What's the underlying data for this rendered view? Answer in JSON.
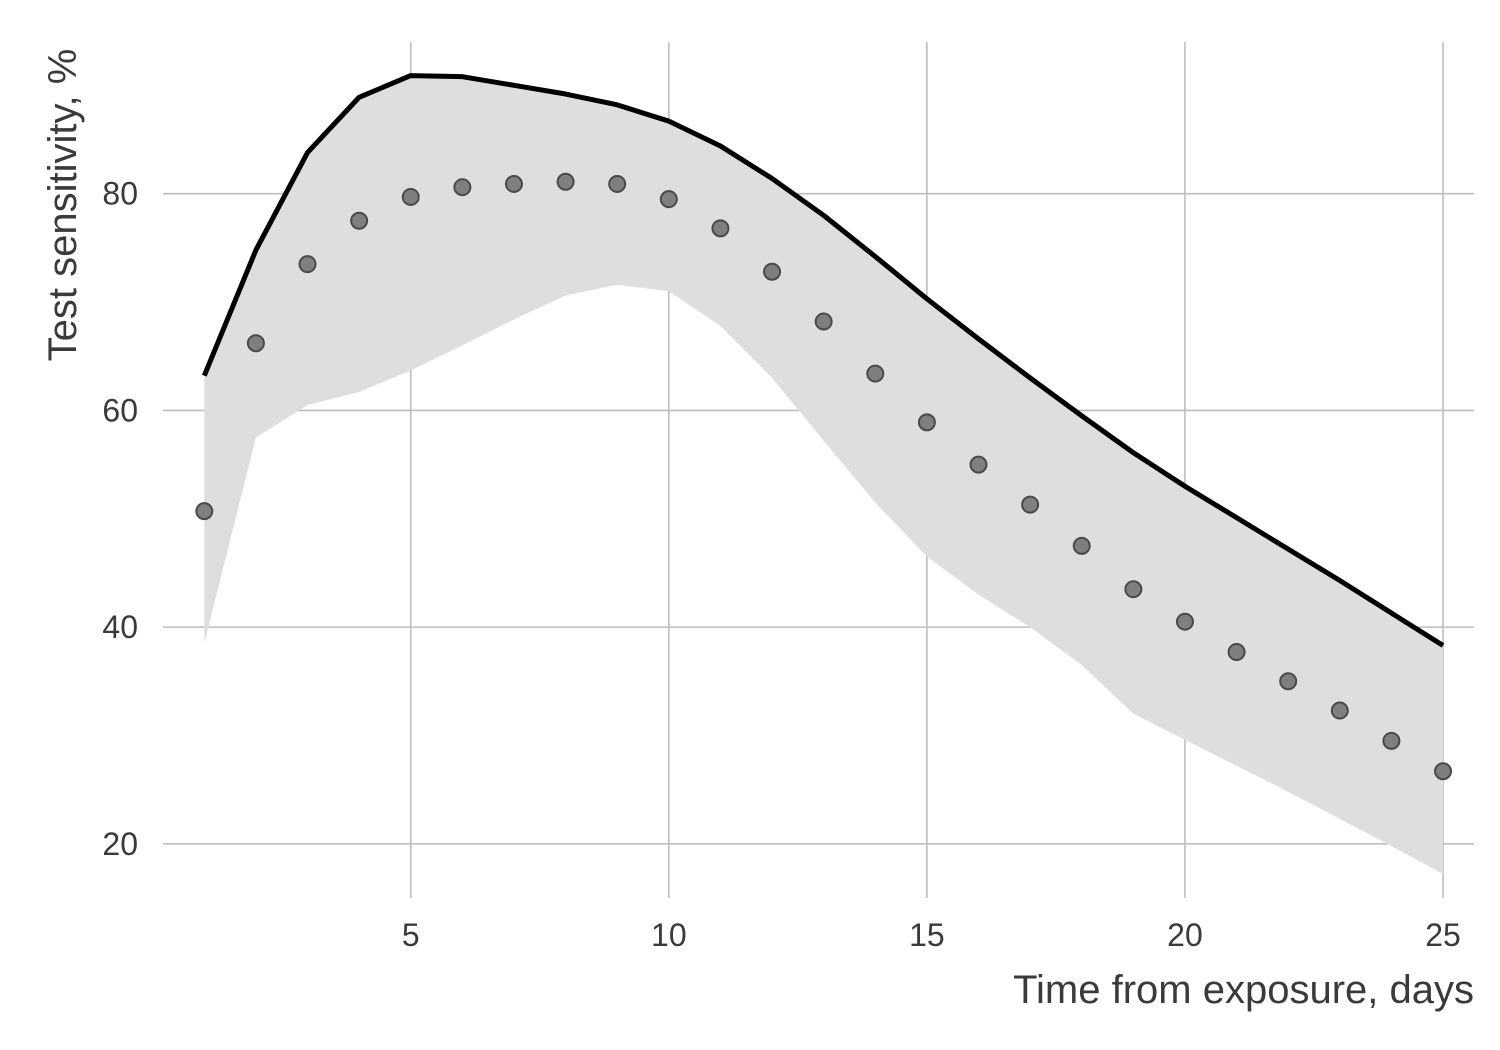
{
  "chart_data": {
    "type": "line",
    "xlabel": "Time from exposure, days",
    "ylabel": "Test sensitivity, %",
    "xlim": [
      0.2,
      25.6
    ],
    "ylim": [
      15,
      94
    ],
    "xticks": [
      5,
      10,
      15,
      20,
      25
    ],
    "yticks": [
      20,
      40,
      60,
      80
    ],
    "xtick_labels": [
      "5",
      "10",
      "15",
      "20",
      "25"
    ],
    "ytick_labels": [
      "20",
      "40",
      "60",
      "80"
    ],
    "grid": true,
    "colors": {
      "band": "#dedede",
      "upper_line": "#000000",
      "points": "#7f7f7f",
      "grid": "#bdbdbd",
      "text": "#3a3a3a"
    },
    "x": [
      1,
      2,
      3,
      4,
      5,
      6,
      7,
      8,
      9,
      10,
      11,
      12,
      13,
      14,
      15,
      16,
      17,
      18,
      19,
      20,
      21,
      22,
      23,
      24,
      25
    ],
    "series": [
      {
        "type": "scatter",
        "values": [
          50.7,
          66.2,
          73.5,
          77.5,
          79.7,
          80.6,
          80.9,
          81.1,
          80.9,
          79.5,
          76.8,
          72.8,
          68.2,
          63.4,
          58.9,
          55.0,
          51.3,
          47.5,
          43.5,
          40.5,
          37.7,
          35.0,
          32.3,
          29.5,
          26.7
        ]
      },
      {
        "type": "line",
        "values": [
          63.2,
          74.8,
          83.8,
          88.9,
          90.9,
          90.8,
          90.0,
          89.2,
          88.2,
          86.7,
          84.4,
          81.4,
          78.0,
          74.2,
          70.3,
          66.6,
          63.0,
          59.5,
          56.1,
          53.0,
          50.1,
          47.2,
          44.3,
          41.3,
          38.3
        ]
      },
      {
        "type": "area",
        "values": [
          38.5,
          57.5,
          60.5,
          61.7,
          63.7,
          66.0,
          68.4,
          70.6,
          71.6,
          71.0,
          67.8,
          63.0,
          57.2,
          51.5,
          46.5,
          43.0,
          40.0,
          36.5,
          32.0,
          29.6,
          27.2,
          24.8,
          22.3,
          19.8,
          17.2
        ]
      }
    ]
  }
}
